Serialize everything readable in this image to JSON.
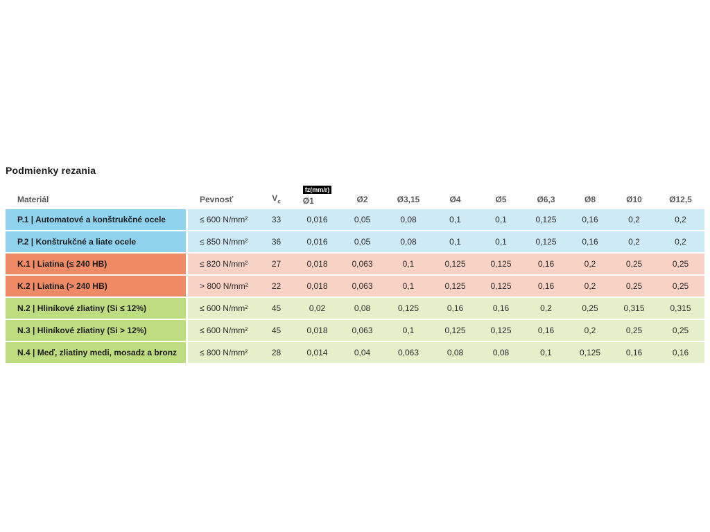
{
  "page": {
    "title": "Podmienky rezania"
  },
  "colors": {
    "steel_accent": "#8fd3ee",
    "steel_pale": "#cfeaf7",
    "cast_iron_accent": "#ef8a66",
    "cast_iron_pale": "#f8d2c4",
    "nonferrous_accent": "#bedc80",
    "nonferrous_pale": "#e5efca",
    "fz_badge_bg": "#000000",
    "fz_badge_text": "#ffffff"
  },
  "table": {
    "fz_badge": "fz(mm/r)",
    "headers": {
      "material": "Materiál",
      "strength": "Pevnosť",
      "vc_main": "V",
      "vc_sub": "c",
      "diameters": [
        "Ø1",
        "Ø2",
        "Ø3,15",
        "Ø4",
        "Ø5",
        "Ø6,3",
        "Ø8",
        "Ø10",
        "Ø12,5"
      ]
    },
    "rows": [
      {
        "tone": "blue",
        "material": "P.1 | Automatové a konštrukčné ocele",
        "strength": "≤ 600 N/mm²",
        "vc": "33",
        "fz": [
          "0,016",
          "0,05",
          "0,08",
          "0,1",
          "0,1",
          "0,125",
          "0,16",
          "0,2",
          "0,2"
        ]
      },
      {
        "tone": "blue",
        "material": "P.2 | Konštrukčné a liate ocele",
        "strength": "≤ 850 N/mm²",
        "vc": "36",
        "fz": [
          "0,016",
          "0,05",
          "0,08",
          "0,1",
          "0,1",
          "0,125",
          "0,16",
          "0,2",
          "0,2"
        ]
      },
      {
        "tone": "orange",
        "material": "K.1 | Liatina (≤ 240 HB)",
        "strength": "≤ 820 N/mm²",
        "vc": "27",
        "fz": [
          "0,018",
          "0,063",
          "0,1",
          "0,125",
          "0,125",
          "0,16",
          "0,2",
          "0,25",
          "0,25"
        ]
      },
      {
        "tone": "orange",
        "material": "K.2 | Liatina (> 240 HB)",
        "strength": "> 800 N/mm²",
        "vc": "22",
        "fz": [
          "0,018",
          "0,063",
          "0,1",
          "0,125",
          "0,125",
          "0,16",
          "0,2",
          "0,25",
          "0,25"
        ]
      },
      {
        "tone": "green",
        "material": "N.2 | Hliníkové zliatiny (Si ≤ 12%)",
        "strength": "≤ 600 N/mm²",
        "vc": "45",
        "fz": [
          "0,02",
          "0,08",
          "0,125",
          "0,16",
          "0,16",
          "0,2",
          "0,25",
          "0,315",
          "0,315"
        ]
      },
      {
        "tone": "green",
        "material": "N.3 | Hliníkové zliatiny (Si > 12%)",
        "strength": "≤ 600 N/mm²",
        "vc": "45",
        "fz": [
          "0,018",
          "0,063",
          "0,1",
          "0,125",
          "0,125",
          "0,16",
          "0,2",
          "0,25",
          "0,25"
        ]
      },
      {
        "tone": "green",
        "material": "N.4 | Meď, zliatiny medi, mosadz a bronz",
        "strength": "≤ 800 N/mm²",
        "vc": "28",
        "fz": [
          "0,014",
          "0,04",
          "0,063",
          "0,08",
          "0,08",
          "0,1",
          "0,125",
          "0,16",
          "0,16"
        ]
      }
    ]
  }
}
